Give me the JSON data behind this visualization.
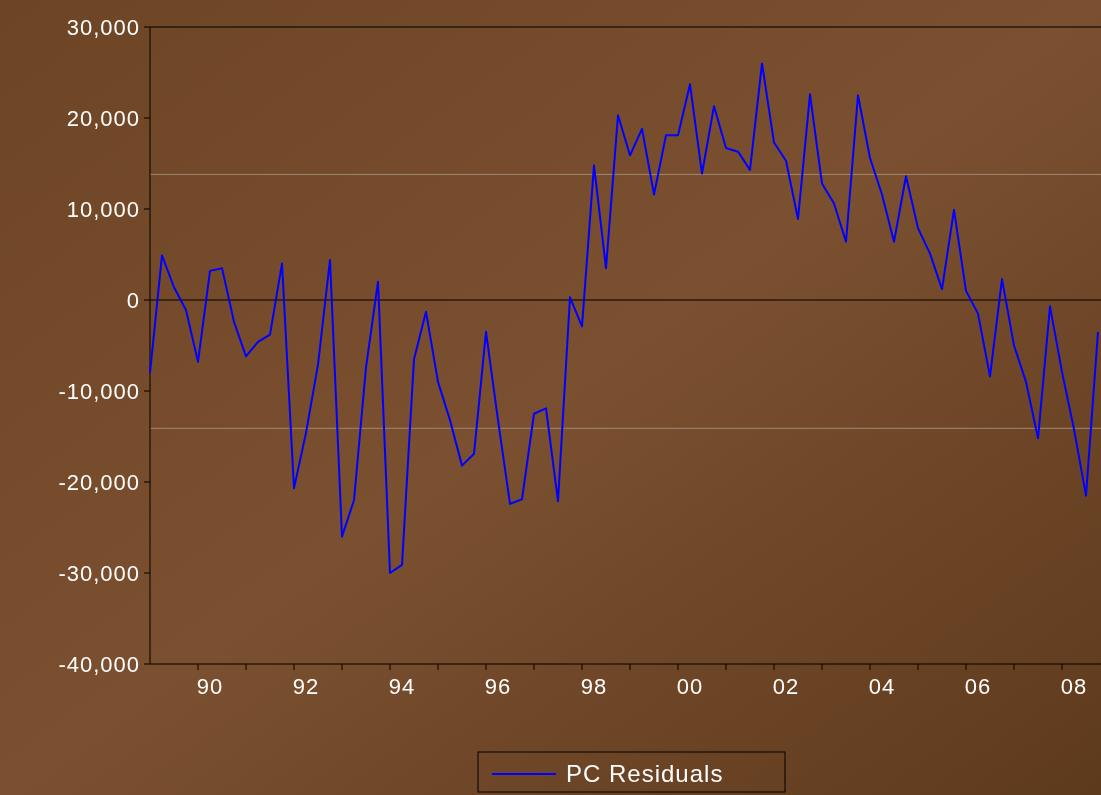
{
  "chart_data": {
    "type": "line",
    "categories": [
      null,
      null,
      null,
      null,
      null,
      "90",
      null,
      null,
      null,
      null,
      null,
      null,
      null,
      "92",
      null,
      null,
      null,
      null,
      null,
      null,
      null,
      "94",
      null,
      null,
      null,
      null,
      null,
      null,
      null,
      "96",
      null,
      null,
      null,
      null,
      null,
      null,
      null,
      "98",
      null,
      null,
      null,
      null,
      null,
      null,
      null,
      "00",
      null,
      null,
      null,
      null,
      null,
      null,
      null,
      "02",
      null,
      null,
      null,
      null,
      null,
      null,
      null,
      "04",
      null,
      null,
      null,
      null,
      null,
      null,
      null,
      "06",
      null,
      null,
      null,
      null,
      null,
      null,
      null,
      "08",
      null,
      null
    ],
    "series": [
      {
        "name": "PC Residuals",
        "color": "#0000ff",
        "values": [
          -8000,
          4900,
          1400,
          -1100,
          -6800,
          3200,
          3500,
          -2400,
          -6200,
          -4600,
          -3800,
          4000,
          -20700,
          -14600,
          -7100,
          4400,
          -26000,
          -22000,
          -7400,
          2000,
          -30000,
          -29100,
          -6500,
          -1300,
          -9000,
          -13200,
          -18200,
          -16900,
          -3500,
          -13200,
          -22400,
          -21900,
          -12500,
          -11900,
          -22100,
          300,
          -2900,
          14800,
          3500,
          20300,
          15900,
          18800,
          11600,
          18100,
          18100,
          23700,
          13900,
          21300,
          16700,
          16300,
          14300,
          26000,
          17300,
          15300,
          8900,
          22600,
          12800,
          10600,
          6400,
          22500,
          15600,
          11600,
          6400,
          13600,
          7900,
          5100,
          1200,
          9900,
          1000,
          -1500,
          -8400,
          2300,
          -5000,
          -9000,
          -15200,
          -700,
          -7900,
          -14200,
          -21500,
          -3500
        ]
      }
    ],
    "ylim": [
      -40000,
      30000
    ],
    "yticks": [
      {
        "value": -40000,
        "label": "-40,000"
      },
      {
        "value": -30000,
        "label": "-30,000"
      },
      {
        "value": -20000,
        "label": "-20,000"
      },
      {
        "value": -10000,
        "label": "-10,000"
      },
      0,
      {
        "value": 10000,
        "label": "10,000"
      },
      {
        "value": 20000,
        "label": "20,000"
      },
      {
        "value": 30000,
        "label": "30,000"
      }
    ],
    "ref_lines": [
      {
        "axis": "y",
        "value": 0,
        "color": "#000000"
      },
      {
        "axis": "y",
        "value": 13800,
        "color": "#a08870"
      },
      {
        "axis": "y",
        "value": -14100,
        "color": "#a08870"
      }
    ],
    "grid": false,
    "legend": "bottom",
    "marker": "none",
    "line_style": "solid"
  }
}
